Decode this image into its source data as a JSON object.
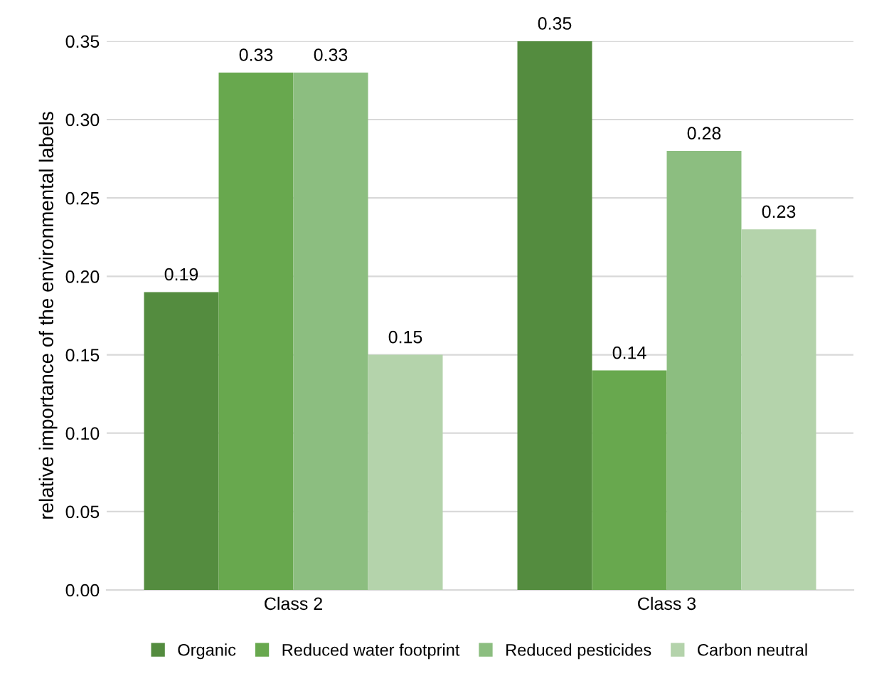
{
  "chart_data": {
    "type": "bar",
    "ylabel": "relative importance of the environmental labels",
    "categories": [
      "Class 2",
      "Class 3"
    ],
    "series": [
      {
        "name": "Organic",
        "color": "#548c3f",
        "values": [
          0.19,
          0.35
        ]
      },
      {
        "name": "Reduced water footprint",
        "color": "#68a84e",
        "values": [
          0.33,
          0.14
        ]
      },
      {
        "name": "Reduced pesticides",
        "color": "#8cbe80",
        "values": [
          0.33,
          0.28
        ]
      },
      {
        "name": "Carbon neutral",
        "color": "#b4d3ab",
        "values": [
          0.15,
          0.23
        ]
      }
    ],
    "ylim": [
      0,
      0.35
    ],
    "yticks": [
      {
        "value": 0,
        "label": "0.00"
      },
      {
        "value": 0.05,
        "label": "0.05"
      },
      {
        "value": 0.1,
        "label": "0.10"
      },
      {
        "value": 0.15,
        "label": "0.15"
      },
      {
        "value": 0.2,
        "label": "0.20"
      },
      {
        "value": 0.25,
        "label": "0.25"
      },
      {
        "value": 0.3,
        "label": "0.30"
      },
      {
        "value": 0.35,
        "label": "0.35"
      }
    ],
    "grid": "y",
    "legend": "bottom",
    "data_labels": true
  }
}
